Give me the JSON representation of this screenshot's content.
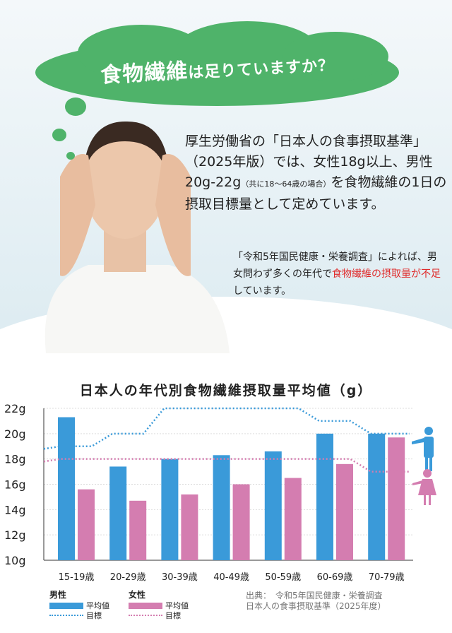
{
  "hero": {
    "title_main": "食物繊維",
    "title_rest": "は足りていますか？",
    "paragraph1_parts": [
      "厚生労働省の「日本人の食事摂取基準」（2025年版）では、女性18g以上、男性20g-22g",
      "（共に18～64歳の場合）",
      "を食物繊維の1日の摂取目標量として定めています。"
    ],
    "paragraph2_parts": [
      "「令和5年国民健康・栄養調査」によれば、男女問わず多くの年代で",
      "食物繊維の摂取量が不足",
      "しています。"
    ]
  },
  "colors": {
    "male": "#3a9ad9",
    "female": "#d47db0",
    "cloud": "#4fb36a",
    "highlight": "#e02a2a"
  },
  "icons": [
    "thought-cloud",
    "man-pointing-icon",
    "woman-pointing-icon"
  ],
  "chart_data": {
    "type": "bar",
    "title": "日本人の年代別食物繊維摂取量平均値（g）",
    "categories": [
      "15-19歳",
      "20-29歳",
      "30-39歳",
      "40-49歳",
      "50-59歳",
      "60-69歳",
      "70-79歳"
    ],
    "series": [
      {
        "name": "男性 平均値",
        "values": [
          21.3,
          17.4,
          18.0,
          18.3,
          18.6,
          20.0,
          20.0
        ]
      },
      {
        "name": "女性 平均値",
        "values": [
          15.6,
          14.7,
          15.2,
          16.0,
          16.5,
          17.6,
          19.7
        ]
      }
    ],
    "targets": [
      {
        "name": "男性 目標",
        "values": [
          19,
          20,
          22,
          22,
          22,
          21,
          20
        ]
      },
      {
        "name": "女性 目標",
        "values": [
          18,
          18,
          18,
          18,
          18,
          18,
          17
        ]
      }
    ],
    "yticks": [
      "10g",
      "12g",
      "14g",
      "16g",
      "18g",
      "20g",
      "22g"
    ],
    "ylim": [
      10,
      22
    ],
    "grid": true
  },
  "legend": {
    "male_title": "男性",
    "female_title": "女性",
    "avg_label": "平均値",
    "target_label": "目標"
  },
  "source": {
    "line1": "出典：　令和5年国民健康・栄養調査",
    "line2": "日本人の食事摂取基準（2025年度）"
  }
}
